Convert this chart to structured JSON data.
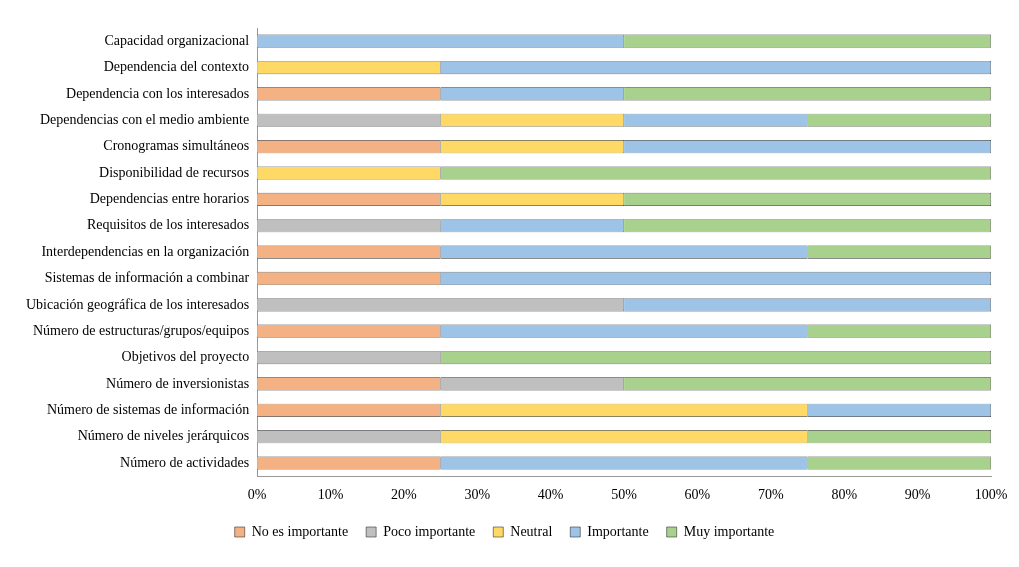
{
  "chart_data": {
    "type": "bar",
    "orientation": "horizontal",
    "stacked": true,
    "legend": "bottom",
    "grid": false,
    "categories": [
      "Capacidad organizacional",
      "Dependencia del contexto",
      "Dependencia con los interesados",
      "Dependencias con el medio ambiente",
      "Cronogramas simultáneos",
      "Disponibilidad de recursos",
      "Dependencias entre horarios",
      "Requisitos de los interesados",
      "Interdependencias en la organización",
      "Sistemas de información a combinar",
      "Ubicación geográfica de los interesados",
      "Número de estructuras/grupos/equipos",
      "Objetivos del proyecto",
      "Número de inversionistas",
      "Número de sistemas de información",
      "Número de niveles jerárquicos",
      "Número de actividades"
    ],
    "xlim": [
      0,
      100
    ],
    "xticks": [
      {
        "value": 0,
        "label": "0%"
      },
      {
        "value": 10,
        "label": "10%"
      },
      {
        "value": 20,
        "label": "20%"
      },
      {
        "value": 30,
        "label": "30%"
      },
      {
        "value": 40,
        "label": "40%"
      },
      {
        "value": 50,
        "label": "50%"
      },
      {
        "value": 60,
        "label": "60%"
      },
      {
        "value": 70,
        "label": "70%"
      },
      {
        "value": 80,
        "label": "80%"
      },
      {
        "value": 90,
        "label": "90%"
      },
      {
        "value": 100,
        "label": "100%"
      }
    ],
    "series": [
      {
        "name": "No es importante",
        "color": "#f4b183",
        "values": [
          0,
          0,
          25,
          0,
          25,
          0,
          25,
          0,
          25,
          25,
          0,
          25,
          0,
          25,
          25,
          0,
          25
        ]
      },
      {
        "name": "Poco importante",
        "color": "#bfbfbf",
        "values": [
          0,
          0,
          0,
          25,
          0,
          0,
          0,
          25,
          0,
          0,
          50,
          0,
          25,
          25,
          0,
          25,
          0
        ]
      },
      {
        "name": "Neutral",
        "color": "#ffd966",
        "values": [
          0,
          25,
          0,
          25,
          25,
          25,
          25,
          0,
          0,
          0,
          0,
          0,
          0,
          0,
          50,
          50,
          0
        ]
      },
      {
        "name": "Importante",
        "color": "#9dc3e6",
        "values": [
          50,
          75,
          25,
          25,
          50,
          0,
          0,
          25,
          50,
          75,
          50,
          50,
          0,
          0,
          25,
          0,
          50
        ]
      },
      {
        "name": "Muy importante",
        "color": "#a9d18e",
        "values": [
          50,
          0,
          50,
          25,
          0,
          75,
          50,
          50,
          25,
          0,
          0,
          25,
          75,
          50,
          0,
          25,
          25
        ]
      }
    ]
  }
}
